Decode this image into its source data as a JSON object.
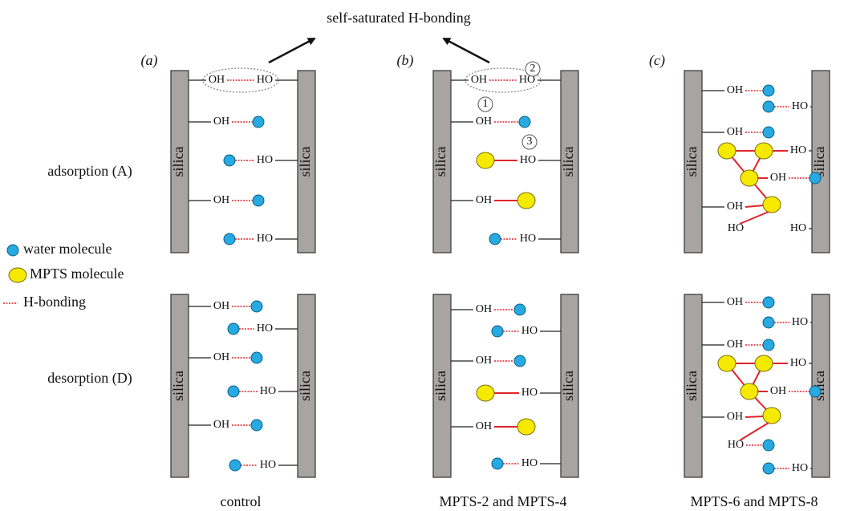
{
  "header": {
    "title": "self-saturated H-bonding"
  },
  "rows": [
    "adsorption (A)",
    "desorption (D)"
  ],
  "legend": [
    "water molecule",
    "MPTS molecule",
    "H-bonding"
  ],
  "panels": [
    {
      "label": "(a)",
      "caption": "control",
      "diagrams": [
        {
          "walls": [
            "silica",
            "silica"
          ],
          "groups": [
            "OH",
            "HO",
            "OH",
            "HO",
            "OH",
            "HO"
          ]
        },
        {
          "walls": [
            "silica",
            "silica"
          ],
          "groups": [
            "OH",
            "HO",
            "OH",
            "HO",
            "OH",
            "HO"
          ]
        }
      ]
    },
    {
      "label": "(b)",
      "caption": "MPTS-2 and MPTS-4",
      "markers": [
        "2",
        "1",
        "3"
      ],
      "diagrams": [
        {
          "walls": [
            "silica",
            "silica"
          ],
          "groups": [
            "OH",
            "HO",
            "OH",
            "HO",
            "OH",
            "HO"
          ]
        },
        {
          "walls": [
            "silica",
            "silica"
          ],
          "groups": [
            "OH",
            "HO",
            "OH",
            "HO",
            "OH",
            "HO"
          ]
        }
      ]
    },
    {
      "label": "(c)",
      "caption": "MPTS-6 and MPTS-8",
      "diagrams": [
        {
          "walls": [
            "silica",
            "silica"
          ],
          "groups": [
            "OH",
            "HO",
            "OH",
            "HO",
            "OH",
            "OH",
            "HO",
            "HO"
          ]
        },
        {
          "walls": [
            "silica",
            "silica"
          ],
          "groups": [
            "OH",
            "HO",
            "OH",
            "HO",
            "OH",
            "OH",
            "HO",
            "HO"
          ]
        }
      ]
    }
  ]
}
